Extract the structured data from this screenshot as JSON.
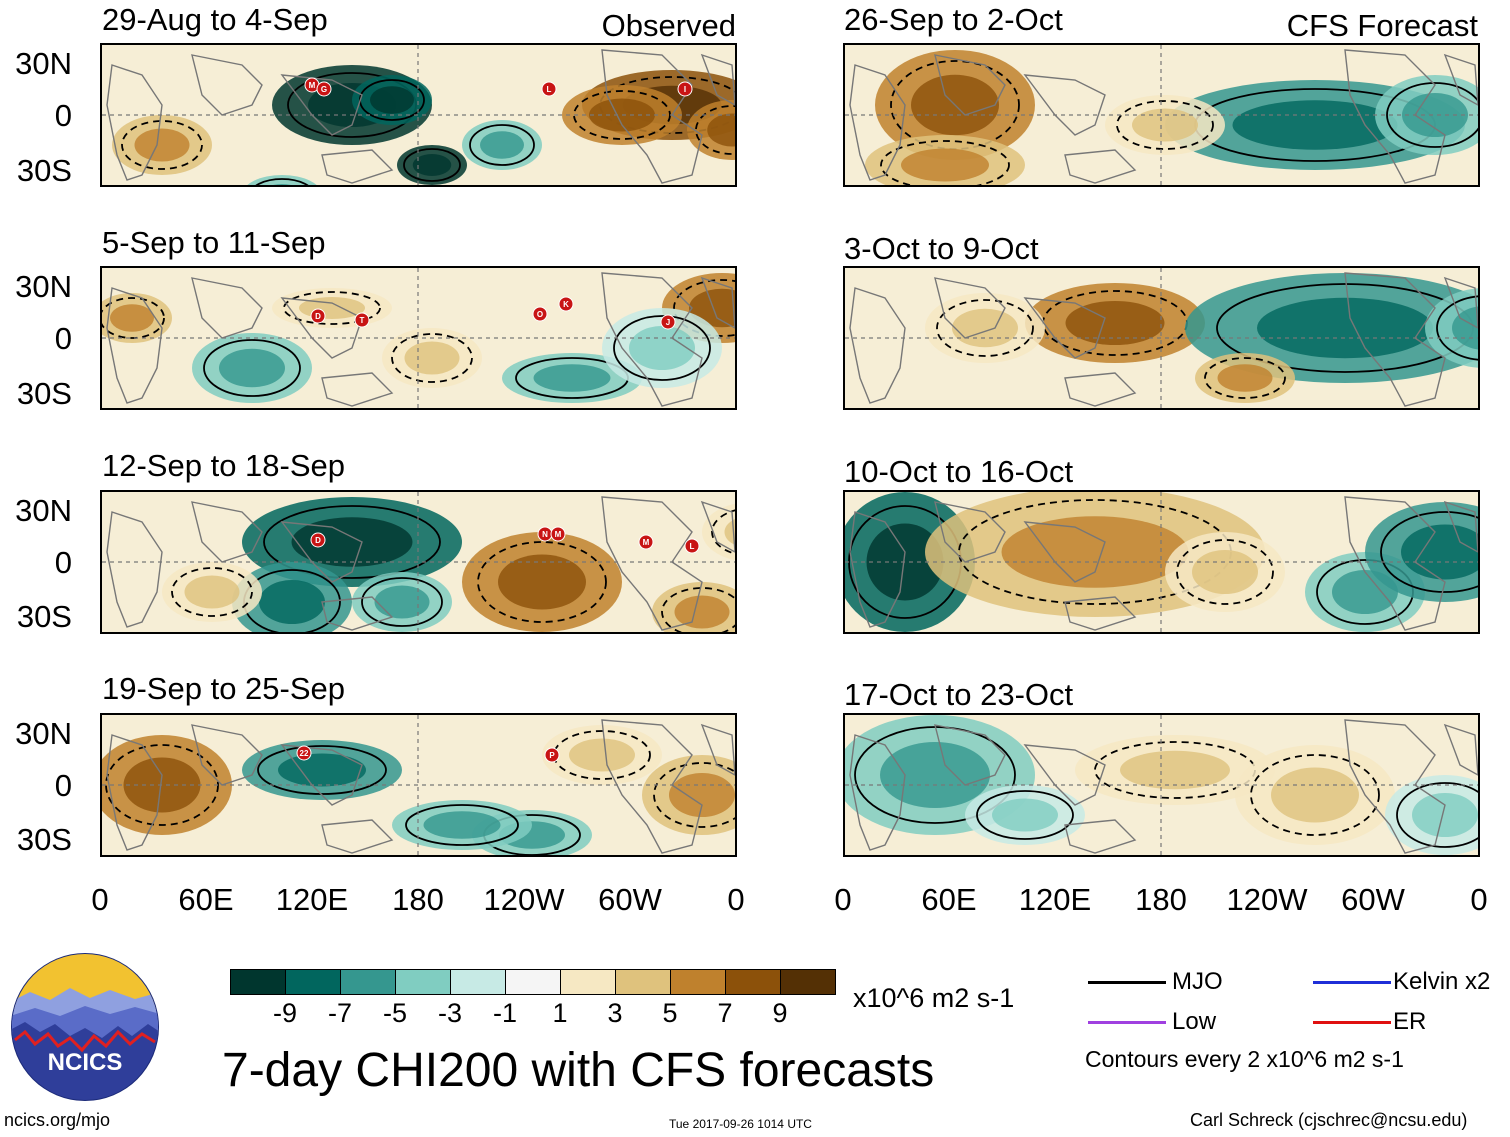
{
  "panels_left": [
    {
      "title": "29-Aug to 4-Sep",
      "tag": "Observed"
    },
    {
      "title": "5-Sep to 11-Sep",
      "tag": ""
    },
    {
      "title": "12-Sep to 18-Sep",
      "tag": ""
    },
    {
      "title": "19-Sep to 25-Sep",
      "tag": ""
    }
  ],
  "panels_right": [
    {
      "title": "26-Sep to 2-Oct",
      "tag": "CFS Forecast"
    },
    {
      "title": "3-Oct to 9-Oct",
      "tag": ""
    },
    {
      "title": "10-Oct to 16-Oct",
      "tag": ""
    },
    {
      "title": "17-Oct to 23-Oct",
      "tag": ""
    }
  ],
  "lat_labels": [
    "30N",
    "0",
    "30S"
  ],
  "lon_labels": [
    "0",
    "60E",
    "120E",
    "180",
    "120W",
    "60W",
    "0"
  ],
  "colorbar": {
    "colors": [
      "#00362e",
      "#01665e",
      "#35978f",
      "#80cdc1",
      "#c7eae5",
      "#f5f5f5",
      "#f6e8c3",
      "#dfc27d",
      "#bf812d",
      "#8c510a",
      "#543005"
    ],
    "labels": [
      "-9",
      "-7",
      "-5",
      "-3",
      "-1",
      "1",
      "3",
      "5",
      "7",
      "9"
    ],
    "units": "x10^6 m2 s-1"
  },
  "main_title": "7-day CHI200 with CFS forecasts",
  "legend": {
    "items": [
      {
        "label": "MJO",
        "color": "#000000"
      },
      {
        "label": "Kelvin x2",
        "color": "#1f2fd8"
      },
      {
        "label": "Low",
        "color": "#a040e0"
      },
      {
        "label": "ER",
        "color": "#e01010"
      }
    ],
    "note": "Contours every 2 x10^6 m2 s-1"
  },
  "logo_text": "NCICS",
  "footer_left": "ncics.org/mjo",
  "timestamp": "Tue 2017-09-26 1014 UTC",
  "footer_right": "Carl Schreck (cjschrec@ncsu.edu)",
  "storm_markers": [
    {
      "panel": 0,
      "letters": [
        "M",
        "G",
        "L",
        "I"
      ]
    },
    {
      "panel": 1,
      "letters": [
        "D",
        "T",
        "O",
        "K",
        "J"
      ]
    },
    {
      "panel": 2,
      "letters": [
        "D",
        "N",
        "M",
        "M",
        "L"
      ]
    },
    {
      "panel": 3,
      "letters": [
        "22",
        "P"
      ]
    }
  ]
}
